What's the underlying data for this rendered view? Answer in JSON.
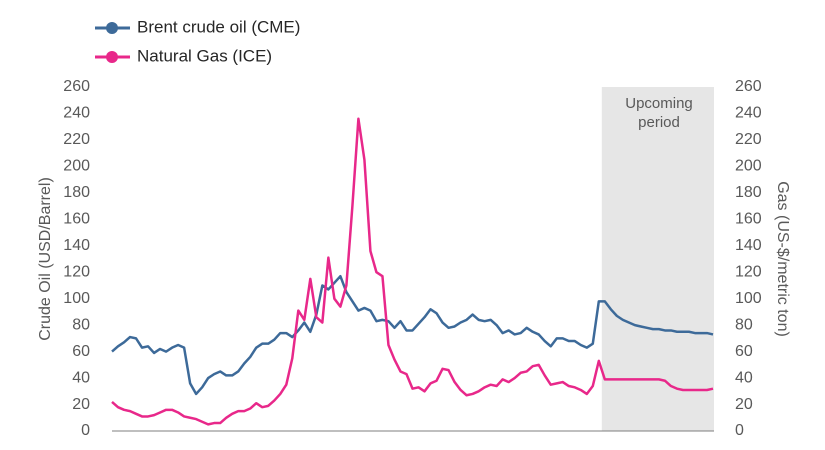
{
  "chart_data": {
    "type": "line",
    "categories": [
      null,
      null,
      null,
      null,
      null,
      null,
      null,
      null,
      null,
      null,
      null,
      null,
      null,
      null,
      null,
      null,
      null,
      null,
      null,
      null,
      null,
      null,
      null,
      null,
      null,
      null,
      null,
      null,
      null,
      null,
      null,
      null,
      null,
      null,
      null,
      null,
      null,
      null,
      null,
      null,
      null,
      null,
      null,
      null,
      null,
      null,
      null,
      null,
      null,
      null,
      null,
      null,
      null,
      null,
      null,
      null,
      null,
      null,
      null,
      null,
      null,
      null,
      null,
      null,
      null,
      null,
      null,
      null,
      null,
      null,
      null,
      null,
      null,
      null,
      null,
      null,
      null,
      null,
      null,
      null,
      null,
      null,
      null,
      null,
      null,
      null,
      null,
      null,
      null,
      null,
      null,
      null,
      null,
      null,
      null,
      null,
      null,
      null,
      null,
      null,
      null
    ],
    "series": [
      {
        "name": "Brent crude oil (CME)",
        "color": "#3d6a99",
        "values": [
          60,
          64,
          67,
          71,
          70,
          63,
          64,
          59,
          62,
          60,
          63,
          65,
          63,
          36,
          28,
          33,
          40,
          43,
          45,
          42,
          42,
          45,
          51,
          56,
          63,
          66,
          66,
          69,
          74,
          74,
          71,
          76,
          82,
          75,
          88,
          110,
          107,
          112,
          117,
          105,
          98,
          91,
          93,
          91,
          83,
          84,
          83,
          78,
          83,
          76,
          76,
          81,
          86,
          92,
          89,
          82,
          78,
          79,
          82,
          84,
          88,
          84,
          83,
          84,
          80,
          74,
          76,
          73,
          74,
          78,
          75,
          73,
          68,
          64,
          70,
          70,
          68,
          68,
          65,
          63,
          66,
          98,
          98,
          92,
          87,
          84,
          82,
          80,
          79,
          78,
          77,
          77,
          76,
          76,
          75,
          75,
          75,
          74,
          74,
          74,
          73
        ]
      },
      {
        "name": "Natural Gas (ICE)",
        "color": "#e8288a",
        "axis": "y2",
        "values": [
          22,
          18,
          16,
          15,
          13,
          11,
          11,
          12,
          14,
          16,
          16,
          14,
          11,
          10,
          9,
          7,
          5,
          6,
          6,
          10,
          13,
          15,
          15,
          17,
          21,
          18,
          19,
          23,
          28,
          35,
          55,
          91,
          84,
          115,
          86,
          82,
          131,
          100,
          94,
          110,
          170,
          236,
          205,
          136,
          120,
          117,
          65,
          54,
          45,
          43,
          32,
          33,
          30,
          36,
          38,
          47,
          46,
          37,
          31,
          27,
          28,
          30,
          33,
          35,
          34,
          39,
          37,
          40,
          44,
          45,
          49,
          50,
          42,
          35,
          36,
          37,
          34,
          33,
          31,
          28,
          34,
          53,
          39,
          39,
          39,
          39,
          39,
          39,
          39,
          39,
          39,
          39,
          38,
          34,
          32,
          31,
          31,
          31,
          31,
          31,
          32
        ]
      }
    ],
    "highlight": {
      "label": "Upcoming period",
      "from": 82
    },
    "ylabel": "Crude Oil (USD/Barrel)",
    "y2label": "Gas (US-$/metric ton)",
    "ylim": [
      0,
      260
    ],
    "yticks": [
      0,
      20,
      40,
      60,
      80,
      100,
      120,
      140,
      160,
      180,
      200,
      220,
      240,
      260
    ],
    "y2lim": [
      0,
      260
    ],
    "y2ticks": [
      0,
      20,
      40,
      60,
      80,
      100,
      120,
      140,
      160,
      180,
      200,
      220,
      240,
      260
    ],
    "grid": false,
    "legend": "top-left"
  }
}
